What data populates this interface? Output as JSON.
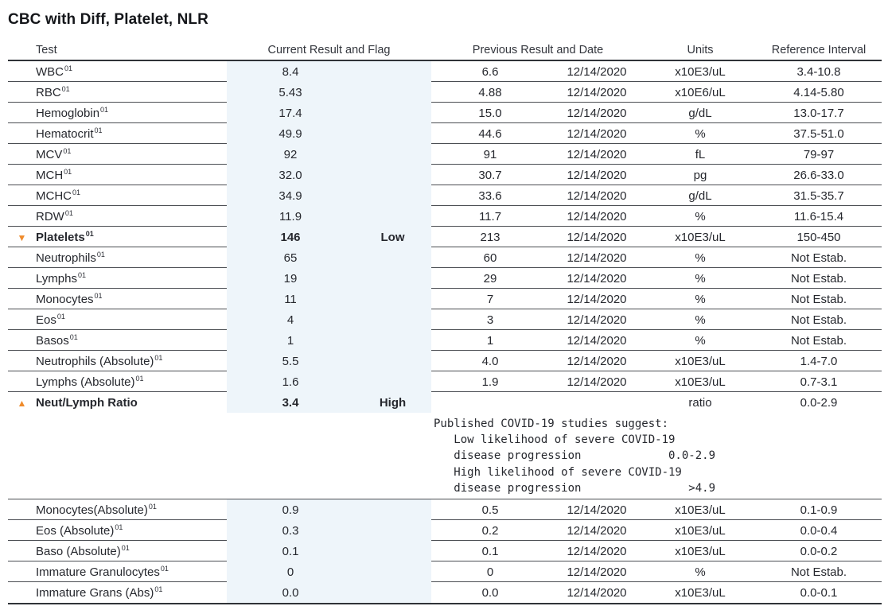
{
  "title": "CBC with Diff, Platelet, NLR",
  "colors": {
    "flag_accent": "#ef8b2c",
    "band": "#eef5fa",
    "line": "#4a4d52",
    "line_strong": "#303338"
  },
  "icons": {
    "down": "▼",
    "up": "▲"
  },
  "table": {
    "headers": {
      "test": "Test",
      "current": "Current Result and Flag",
      "previous": "Previous Result and Date",
      "units": "Units",
      "reference": "Reference Interval"
    },
    "rows_top": [
      {
        "test": "WBC",
        "sup": "01",
        "marker": "",
        "current": "8.4",
        "flag": "",
        "previous": "6.6",
        "date": "12/14/2020",
        "units": "x10E3/uL",
        "reference": "3.4-10.8",
        "bold": false
      },
      {
        "test": "RBC",
        "sup": "01",
        "marker": "",
        "current": "5.43",
        "flag": "",
        "previous": "4.88",
        "date": "12/14/2020",
        "units": "x10E6/uL",
        "reference": "4.14-5.80",
        "bold": false
      },
      {
        "test": "Hemoglobin",
        "sup": "01",
        "marker": "",
        "current": "17.4",
        "flag": "",
        "previous": "15.0",
        "date": "12/14/2020",
        "units": "g/dL",
        "reference": "13.0-17.7",
        "bold": false
      },
      {
        "test": "Hematocrit",
        "sup": "01",
        "marker": "",
        "current": "49.9",
        "flag": "",
        "previous": "44.6",
        "date": "12/14/2020",
        "units": "%",
        "reference": "37.5-51.0",
        "bold": false
      },
      {
        "test": "MCV",
        "sup": "01",
        "marker": "",
        "current": "92",
        "flag": "",
        "previous": "91",
        "date": "12/14/2020",
        "units": "fL",
        "reference": "79-97",
        "bold": false
      },
      {
        "test": "MCH",
        "sup": "01",
        "marker": "",
        "current": "32.0",
        "flag": "",
        "previous": "30.7",
        "date": "12/14/2020",
        "units": "pg",
        "reference": "26.6-33.0",
        "bold": false
      },
      {
        "test": "MCHC",
        "sup": "01",
        "marker": "",
        "current": "34.9",
        "flag": "",
        "previous": "33.6",
        "date": "12/14/2020",
        "units": "g/dL",
        "reference": "31.5-35.7",
        "bold": false
      },
      {
        "test": "RDW",
        "sup": "01",
        "marker": "",
        "current": "11.9",
        "flag": "",
        "previous": "11.7",
        "date": "12/14/2020",
        "units": "%",
        "reference": "11.6-15.4",
        "bold": false
      },
      {
        "test": "Platelets",
        "sup": "01",
        "marker": "down",
        "current": "146",
        "flag": "Low",
        "previous": "213",
        "date": "12/14/2020",
        "units": "x10E3/uL",
        "reference": "150-450",
        "bold": true
      },
      {
        "test": "Neutrophils",
        "sup": "01",
        "marker": "",
        "current": "65",
        "flag": "",
        "previous": "60",
        "date": "12/14/2020",
        "units": "%",
        "reference": "Not Estab.",
        "bold": false
      },
      {
        "test": "Lymphs",
        "sup": "01",
        "marker": "",
        "current": "19",
        "flag": "",
        "previous": "29",
        "date": "12/14/2020",
        "units": "%",
        "reference": "Not Estab.",
        "bold": false
      },
      {
        "test": "Monocytes",
        "sup": "01",
        "marker": "",
        "current": "11",
        "flag": "",
        "previous": "7",
        "date": "12/14/2020",
        "units": "%",
        "reference": "Not Estab.",
        "bold": false
      },
      {
        "test": "Eos",
        "sup": "01",
        "marker": "",
        "current": "4",
        "flag": "",
        "previous": "3",
        "date": "12/14/2020",
        "units": "%",
        "reference": "Not Estab.",
        "bold": false
      },
      {
        "test": "Basos",
        "sup": "01",
        "marker": "",
        "current": "1",
        "flag": "",
        "previous": "1",
        "date": "12/14/2020",
        "units": "%",
        "reference": "Not Estab.",
        "bold": false
      },
      {
        "test": "Neutrophils (Absolute)",
        "sup": "01",
        "marker": "",
        "current": "5.5",
        "flag": "",
        "previous": "4.0",
        "date": "12/14/2020",
        "units": "x10E3/uL",
        "reference": "1.4-7.0",
        "bold": false
      },
      {
        "test": "Lymphs (Absolute)",
        "sup": "01",
        "marker": "",
        "current": "1.6",
        "flag": "",
        "previous": "1.9",
        "date": "12/14/2020",
        "units": "x10E3/uL",
        "reference": "0.7-3.1",
        "bold": false
      },
      {
        "test": "Neut/Lymph Ratio",
        "sup": "",
        "marker": "up",
        "current": "3.4",
        "flag": "High",
        "previous": "",
        "date": "",
        "units": "ratio",
        "reference": "0.0-2.9",
        "bold": true
      }
    ],
    "note": {
      "lines": [
        "Published COVID-19 studies suggest:",
        "   Low likelihood of severe COVID-19",
        "   disease progression             0.0-2.9",
        "   High likelihood of severe COVID-19",
        "   disease progression                >4.9"
      ]
    },
    "rows_bottom": [
      {
        "test": "Monocytes(Absolute)",
        "sup": "01",
        "marker": "",
        "current": "0.9",
        "flag": "",
        "previous": "0.5",
        "date": "12/14/2020",
        "units": "x10E3/uL",
        "reference": "0.1-0.9",
        "bold": false
      },
      {
        "test": "Eos (Absolute)",
        "sup": "01",
        "marker": "",
        "current": "0.3",
        "flag": "",
        "previous": "0.2",
        "date": "12/14/2020",
        "units": "x10E3/uL",
        "reference": "0.0-0.4",
        "bold": false
      },
      {
        "test": "Baso (Absolute)",
        "sup": "01",
        "marker": "",
        "current": "0.1",
        "flag": "",
        "previous": "0.1",
        "date": "12/14/2020",
        "units": "x10E3/uL",
        "reference": "0.0-0.2",
        "bold": false
      },
      {
        "test": "Immature Granulocytes",
        "sup": "01",
        "marker": "",
        "current": "0",
        "flag": "",
        "previous": "0",
        "date": "12/14/2020",
        "units": "%",
        "reference": "Not Estab.",
        "bold": false
      },
      {
        "test": "Immature Grans (Abs)",
        "sup": "01",
        "marker": "",
        "current": "0.0",
        "flag": "",
        "previous": "0.0",
        "date": "12/14/2020",
        "units": "x10E3/uL",
        "reference": "0.0-0.1",
        "bold": false
      }
    ]
  }
}
